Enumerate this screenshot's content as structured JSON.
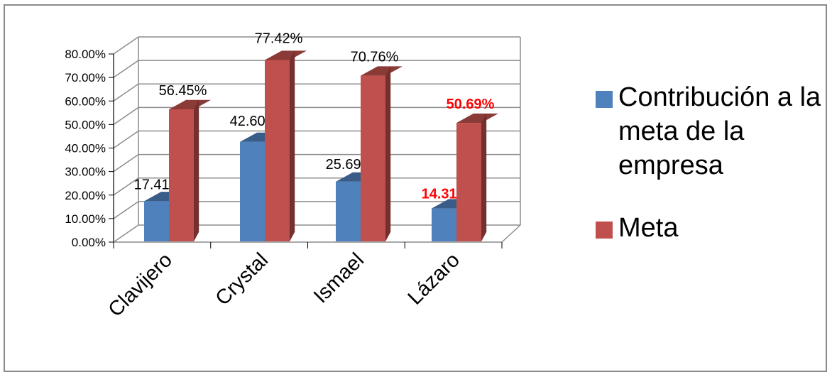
{
  "chart_data": {
    "type": "bar",
    "categories": [
      "Clavijero",
      "Crystal",
      "Ismael",
      "Lázaro"
    ],
    "series": [
      {
        "name": "Contribución a la meta de la empresa",
        "color": "#4f81bd",
        "values": [
          17.41,
          42.6,
          25.69,
          14.31
        ],
        "labels": [
          "17.41%",
          "42.60%",
          "25.69%",
          "14.31%"
        ]
      },
      {
        "name": "Meta",
        "color": "#c0504d",
        "values": [
          56.45,
          77.42,
          70.76,
          50.69
        ],
        "labels": [
          "56.45%",
          "77.42%",
          "70.76%",
          "50.69%"
        ]
      }
    ],
    "highlighted_labels": [
      {
        "series": 0,
        "category": "Lázaro",
        "color": "#ff0000"
      },
      {
        "series": 1,
        "category": "Lázaro",
        "color": "#ff0000"
      }
    ],
    "y_ticks": [
      "0.00%",
      "10.00%",
      "20.00%",
      "30.00%",
      "40.00%",
      "50.00%",
      "60.00%",
      "70.00%",
      "80.00%"
    ],
    "ylim": [
      0,
      80
    ],
    "grid": true,
    "style": "3d-clustered-column",
    "legend_position": "right"
  }
}
